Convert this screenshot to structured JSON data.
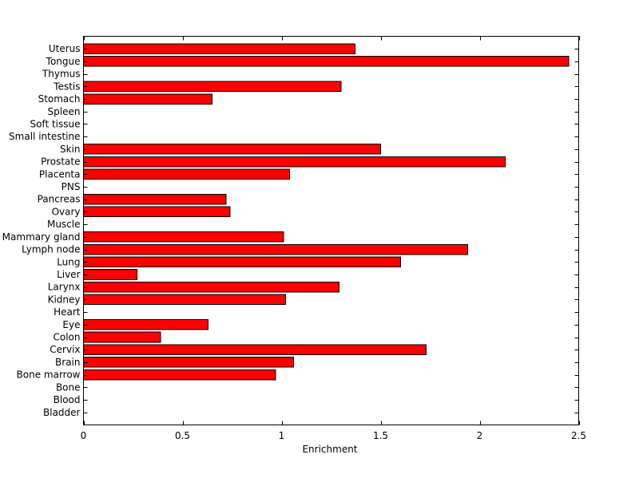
{
  "chart_data": {
    "type": "bar",
    "orientation": "horizontal",
    "xlabel": "Enrichment",
    "ylabel": "",
    "xlim": [
      0,
      2.5
    ],
    "xticks": [
      "0",
      "0.5",
      "1",
      "1.5",
      "2",
      "2.5"
    ],
    "grid": false,
    "bar_color": "#ff0000",
    "categories": [
      "Uterus",
      "Tongue",
      "Thymus",
      "Testis",
      "Stomach",
      "Spleen",
      "Soft tissue",
      "Small intestine",
      "Skin",
      "Prostate",
      "Placenta",
      "PNS",
      "Pancreas",
      "Ovary",
      "Muscle",
      "Mammary gland",
      "Lymph node",
      "Lung",
      "Liver",
      "Larynx",
      "Kidney",
      "Heart",
      "Eye",
      "Colon",
      "Cervix",
      "Brain",
      "Bone marrow",
      "Bone",
      "Blood",
      "Bladder"
    ],
    "values": [
      1.37,
      2.45,
      0,
      1.3,
      0.65,
      0,
      0,
      0,
      1.5,
      2.13,
      1.04,
      0,
      0.72,
      0.74,
      0,
      1.01,
      1.94,
      1.6,
      0.27,
      1.29,
      1.02,
      0,
      0.63,
      0.39,
      1.73,
      1.06,
      0.97,
      0,
      0,
      0
    ]
  }
}
